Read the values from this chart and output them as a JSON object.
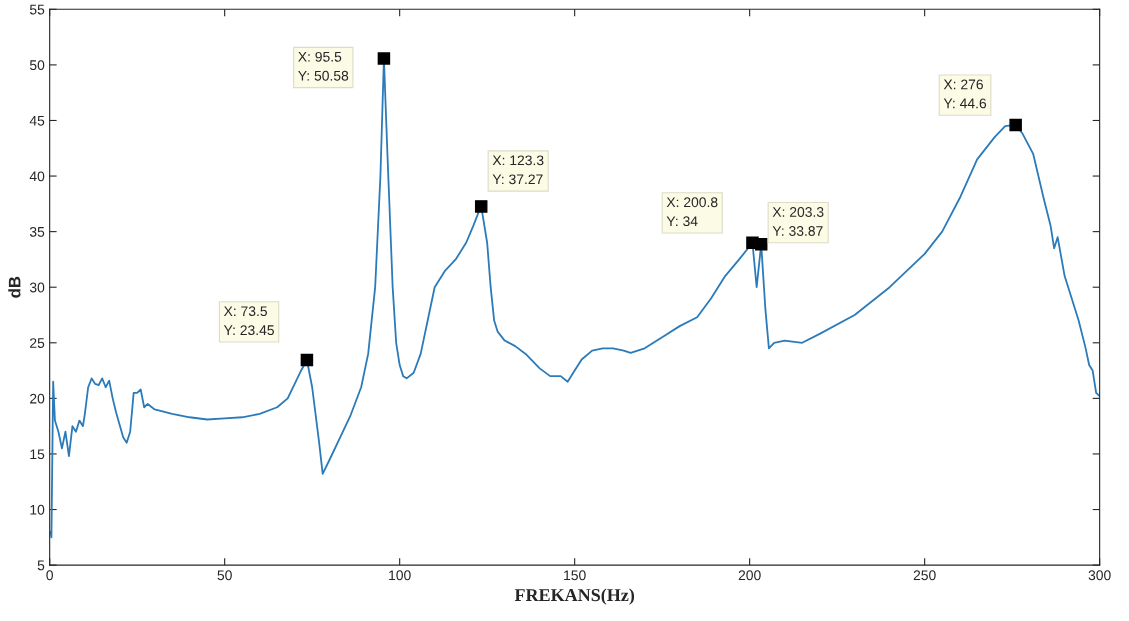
{
  "chart_data": {
    "type": "line",
    "xlabel": "FREKANS(Hz)",
    "ylabel": "dB",
    "series": [
      {
        "color": "#2b7bba",
        "x": [
          0.3,
          0.5,
          1,
          1.5,
          2.5,
          3.5,
          4.5,
          5.5,
          6.5,
          7.5,
          8.5,
          9.5,
          10,
          11,
          12,
          13,
          14,
          15,
          16,
          17,
          18,
          19,
          21,
          22,
          23,
          24,
          25,
          26,
          27,
          28,
          30,
          35,
          40,
          45,
          50,
          55,
          60,
          65,
          68,
          70,
          72,
          73.5,
          75,
          77,
          78,
          80,
          83,
          86,
          89,
          91,
          93,
          94.5,
          95.5,
          96.5,
          98,
          99,
          100,
          101,
          102,
          104,
          106,
          108,
          110,
          113,
          116,
          119,
          121,
          122.5,
          123.3,
          125,
          126,
          127,
          128,
          130,
          133,
          136,
          140,
          143,
          146,
          148,
          150,
          152,
          155,
          158,
          161,
          164,
          166,
          170,
          175,
          180,
          185,
          189,
          193,
          197,
          200.8,
          202,
          203.3,
          204.5,
          205.5,
          207,
          210,
          215,
          220,
          230,
          240,
          250,
          255,
          260,
          265,
          270,
          273,
          276,
          278,
          281,
          284,
          286,
          287,
          288,
          290,
          292,
          294,
          296,
          297,
          298,
          299,
          300
        ],
        "values": [
          8,
          7.5,
          21.5,
          18,
          17,
          15.5,
          17,
          14.8,
          17.5,
          17,
          18,
          17.5,
          18.5,
          21,
          21.8,
          21.3,
          21.2,
          21.8,
          21,
          21.6,
          20,
          18.7,
          16.5,
          16,
          17,
          20.5,
          20.5,
          20.8,
          19.2,
          19.5,
          19,
          18.6,
          18.3,
          18.1,
          18.2,
          18.3,
          18.6,
          19.2,
          20,
          21.3,
          22.6,
          23.45,
          21,
          16,
          13.2,
          14.5,
          16.5,
          18.5,
          21,
          24,
          30,
          40,
          50.58,
          42,
          30,
          25,
          23,
          22,
          21.8,
          22.3,
          24,
          27,
          30,
          31.5,
          32.5,
          34,
          35.5,
          36.7,
          37.27,
          34,
          30,
          27,
          26,
          25.2,
          24.7,
          24,
          22.7,
          22,
          22,
          21.5,
          22.5,
          23.5,
          24.3,
          24.5,
          24.5,
          24.3,
          24.1,
          24.5,
          25.5,
          26.5,
          27.3,
          29,
          31,
          32.5,
          34,
          30,
          33.87,
          28,
          24.5,
          25,
          25.2,
          25,
          25.8,
          27.5,
          30,
          33,
          35,
          38,
          41.5,
          43.5,
          44.5,
          44.6,
          43.8,
          42,
          38,
          35.5,
          33.5,
          34.5,
          31,
          29,
          27,
          24.5,
          23,
          22.5,
          20.5,
          20.2
        ]
      }
    ],
    "annotations": [
      {
        "text": "X: 73.5\nY: 23.45",
        "x": 73.5,
        "y": 23.45
      },
      {
        "text": "X: 95.5\nY: 50.58",
        "x": 95.5,
        "y": 50.58
      },
      {
        "text": "X: 123.3\nY: 37.27",
        "x": 123.3,
        "y": 37.27
      },
      {
        "text": "X: 200.8\nY: 34",
        "x": 200.8,
        "y": 34
      },
      {
        "text": "X: 203.3\nY: 33.87",
        "x": 203.3,
        "y": 33.87
      },
      {
        "text": "X: 276\nY: 44.6",
        "x": 276,
        "y": 44.6
      }
    ],
    "xlim": [
      0,
      300
    ],
    "xticks": [
      0,
      50,
      100,
      150,
      200,
      250,
      300
    ],
    "ylim": [
      5,
      55
    ],
    "yticks": [
      5,
      10,
      15,
      20,
      25,
      30,
      35,
      40,
      45,
      50,
      55
    ],
    "grid": false,
    "legend": false
  }
}
